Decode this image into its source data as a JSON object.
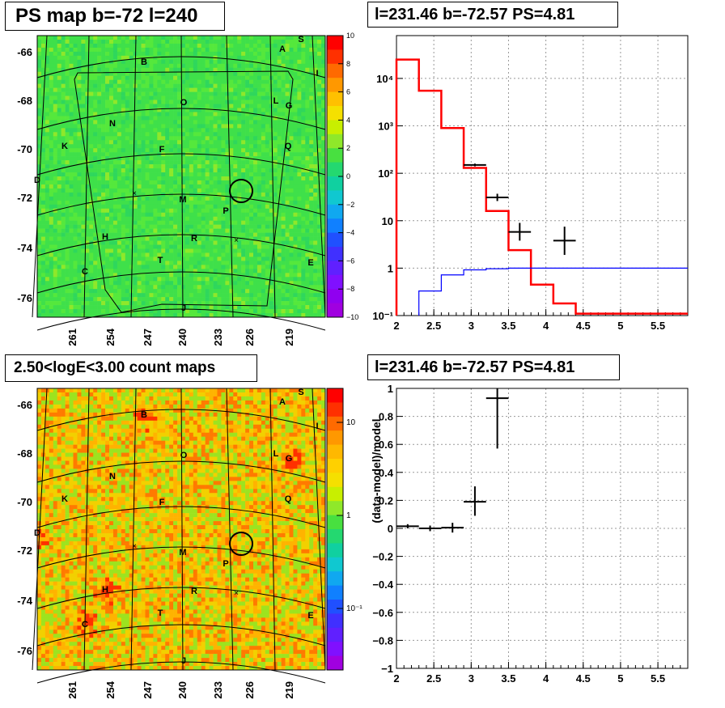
{
  "panels": {
    "top_left_title": "PS map b=-72 l=240",
    "top_right_title": "l=231.46 b=-72.57 PS=4.81",
    "bottom_left_title": "2.50<logE<3.00 count maps",
    "bottom_right_title": "l=231.46 b=-72.57 PS=4.81"
  },
  "maps": {
    "lat_ticks": [
      "-66",
      "-68",
      "-70",
      "-72",
      "-74",
      "-76"
    ],
    "lon_ticks": [
      "261",
      "254",
      "247",
      "240",
      "233",
      "226",
      "219"
    ],
    "source_labels": [
      "S",
      "A",
      "B",
      "I",
      "O",
      "L",
      "G",
      "N",
      "K",
      "F",
      "Q",
      "D",
      "M",
      "P",
      "H",
      "R",
      "T",
      "C",
      "E",
      "J"
    ],
    "colorbar_top_ticks": [
      "10",
      "8",
      "6",
      "4",
      "2",
      "0",
      "−2",
      "−4",
      "−6",
      "−8",
      "−10"
    ],
    "colorbar_bottom_ticks": [
      "10",
      "1",
      "10⁻¹"
    ]
  },
  "chart_data": [
    {
      "type": "line",
      "title": "l=231.46 b=-72.57 PS=4.81",
      "xlim": [
        2,
        5.9
      ],
      "ylim": [
        0.1,
        80000
      ],
      "yscale": "log",
      "grid": true,
      "x_ticks": [
        "2",
        "2.5",
        "3",
        "3.5",
        "4",
        "4.5",
        "5",
        "5.5"
      ],
      "y_ticks": [
        "10⁻¹",
        "1",
        "10",
        "10²",
        "10³",
        "10⁴"
      ],
      "series": [
        {
          "style": "step",
          "color": "#ff0000",
          "bins": [
            [
              2.0,
              2.3,
              25000
            ],
            [
              2.3,
              2.6,
              5500
            ],
            [
              2.6,
              2.9,
              900
            ],
            [
              2.9,
              3.2,
              130
            ],
            [
              3.2,
              3.5,
              16
            ],
            [
              3.5,
              3.8,
              2.4
            ],
            [
              3.8,
              4.1,
              0.45
            ],
            [
              4.1,
              4.4,
              0.18
            ],
            [
              4.4,
              5.9,
              0.11
            ]
          ]
        },
        {
          "style": "step",
          "color": "#0000ff",
          "bins": [
            [
              2.3,
              2.6,
              0.33
            ],
            [
              2.6,
              2.9,
              0.72
            ],
            [
              2.9,
              3.2,
              0.92
            ],
            [
              3.2,
              3.5,
              0.97
            ],
            [
              3.5,
              5.9,
              1.0
            ]
          ]
        },
        {
          "style": "errorbar",
          "color": "#000000",
          "points": [
            {
              "x": 3.05,
              "y": 150,
              "xerr": 0.15,
              "ylo": 140,
              "yhi": 160
            },
            {
              "x": 3.35,
              "y": 31,
              "xerr": 0.15,
              "ylo": 26,
              "yhi": 37
            },
            {
              "x": 3.65,
              "y": 5.8,
              "xerr": 0.15,
              "ylo": 3.8,
              "yhi": 9
            },
            {
              "x": 4.25,
              "y": 3.8,
              "xerr": 0.15,
              "ylo": 1.9,
              "yhi": 7.5
            }
          ]
        }
      ]
    },
    {
      "type": "scatter",
      "title": "l=231.46 b=-72.57 PS=4.81",
      "ylabel": "(data-model)/model",
      "xlim": [
        2,
        5.9
      ],
      "ylim": [
        -1,
        1
      ],
      "grid": true,
      "x_ticks": [
        "2",
        "2.5",
        "3",
        "3.5",
        "4",
        "4.5",
        "5",
        "5.5"
      ],
      "y_ticks": [
        "1",
        "0.8",
        "0.6",
        "0.4",
        "0.2",
        "0",
        "−0.2",
        "−0.4",
        "−0.6",
        "−0.8",
        "−1"
      ],
      "series": [
        {
          "style": "errorbar",
          "color": "#000000",
          "points": [
            {
              "x": 2.15,
              "y": 0.015,
              "xerr": 0.15,
              "ylo": 0.0,
              "yhi": 0.03
            },
            {
              "x": 2.45,
              "y": 0.0,
              "xerr": 0.15,
              "ylo": -0.02,
              "yhi": 0.02
            },
            {
              "x": 2.75,
              "y": 0.005,
              "xerr": 0.15,
              "ylo": -0.03,
              "yhi": 0.04
            },
            {
              "x": 3.05,
              "y": 0.19,
              "xerr": 0.15,
              "ylo": 0.09,
              "yhi": 0.3
            },
            {
              "x": 3.35,
              "y": 0.93,
              "xerr": 0.15,
              "ylo": 0.57,
              "yhi": 1.0
            }
          ]
        }
      ]
    }
  ]
}
